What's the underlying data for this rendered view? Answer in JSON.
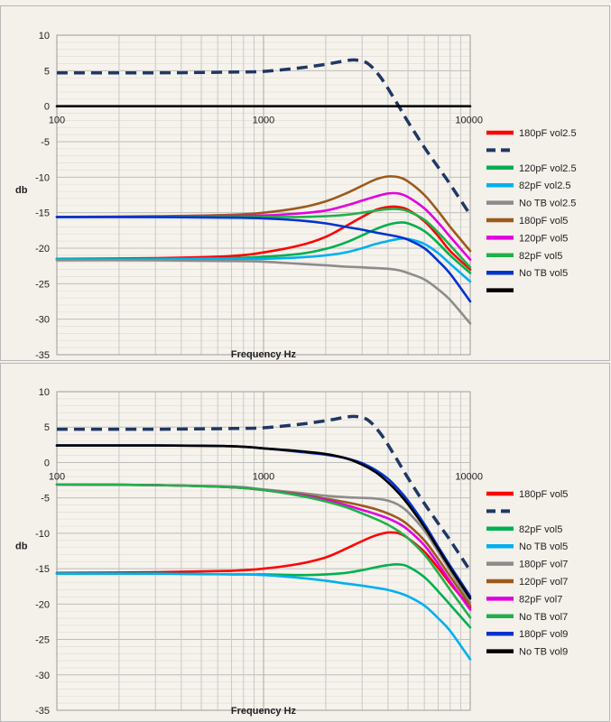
{
  "chart_data": [
    {
      "type": "line",
      "title": "",
      "xlabel": "Frequency Hz",
      "ylabel": "db",
      "xscale": "log",
      "xlim": [
        100,
        10000
      ],
      "ylim": [
        -35,
        10
      ],
      "x_tick_labels": [
        "100",
        "1000",
        "10000"
      ],
      "y_ticks": [
        10,
        5,
        0,
        -5,
        -10,
        -15,
        -20,
        -25,
        -30,
        -35
      ],
      "grid": true,
      "legend": "right",
      "series": [
        {
          "name": "180pF vol2.5",
          "color": "#ff0000",
          "dash": false,
          "x": [
            100,
            300,
            700,
            1000,
            1500,
            2000,
            2500,
            3000,
            3500,
            4000,
            4500,
            5000,
            6000,
            7000,
            8000,
            10000
          ],
          "y": [
            -21.5,
            -21.4,
            -21.1,
            -20.6,
            -19.6,
            -18.4,
            -16.9,
            -15.6,
            -14.6,
            -14.2,
            -14.2,
            -14.6,
            -16.2,
            -18.3,
            -20.4,
            -23.0
          ]
        },
        {
          "name": "",
          "color": "#1f3864",
          "dash": true,
          "x": [
            100,
            300,
            700,
            1000,
            1500,
            2000,
            2500,
            2800,
            3200,
            3700,
            4300,
            5000,
            6000,
            7000,
            8000,
            10000
          ],
          "y": [
            4.7,
            4.7,
            4.8,
            4.9,
            5.4,
            5.9,
            6.4,
            6.5,
            6.0,
            4.0,
            1.0,
            -2.2,
            -5.8,
            -8.6,
            -11.0,
            -15.3
          ]
        },
        {
          "name": "120pF vol2.5",
          "color": "#00b050",
          "dash": false,
          "x": [
            100,
            300,
            700,
            1000,
            1500,
            2000,
            2500,
            3000,
            3500,
            4000,
            4500,
            5000,
            6000,
            7000,
            8000,
            10000
          ],
          "y": [
            -21.5,
            -21.5,
            -21.4,
            -21.2,
            -20.8,
            -20.1,
            -19.2,
            -18.2,
            -17.3,
            -16.7,
            -16.4,
            -16.5,
            -17.6,
            -19.3,
            -21.0,
            -23.5
          ]
        },
        {
          "name": "82pF vol2.5",
          "color": "#00b0f0",
          "dash": false,
          "x": [
            100,
            300,
            700,
            1000,
            1500,
            2000,
            2500,
            3000,
            3500,
            4000,
            4500,
            5000,
            6000,
            7000,
            8000,
            10000
          ],
          "y": [
            -21.6,
            -21.6,
            -21.5,
            -21.5,
            -21.3,
            -21.0,
            -20.6,
            -20.0,
            -19.4,
            -19.0,
            -18.7,
            -18.7,
            -19.4,
            -20.7,
            -22.2,
            -24.7
          ]
        },
        {
          "name": "No TB vol2.5",
          "color": "#8c8c8c",
          "dash": false,
          "x": [
            100,
            300,
            700,
            1000,
            1500,
            2000,
            2500,
            3000,
            3500,
            4000,
            4500,
            5000,
            6000,
            7000,
            8000,
            10000
          ],
          "y": [
            -21.7,
            -21.7,
            -21.8,
            -21.9,
            -22.2,
            -22.4,
            -22.6,
            -22.7,
            -22.8,
            -22.9,
            -23.1,
            -23.5,
            -24.4,
            -25.8,
            -27.3,
            -30.6
          ]
        },
        {
          "name": "180pF vol5",
          "color": "#9c5a1c",
          "dash": false,
          "x": [
            100,
            300,
            700,
            1000,
            1500,
            2000,
            2500,
            3000,
            3500,
            4000,
            4500,
            5000,
            6000,
            7000,
            8000,
            10000
          ],
          "y": [
            -15.6,
            -15.5,
            -15.3,
            -15.0,
            -14.3,
            -13.4,
            -12.3,
            -11.2,
            -10.3,
            -9.9,
            -10.0,
            -10.6,
            -12.5,
            -14.8,
            -17.0,
            -20.4
          ]
        },
        {
          "name": "120pF vol5",
          "color": "#e000e0",
          "dash": false,
          "x": [
            100,
            300,
            700,
            1000,
            1500,
            2000,
            2500,
            3000,
            3500,
            4000,
            4500,
            5000,
            6000,
            7000,
            8000,
            10000
          ],
          "y": [
            -15.6,
            -15.6,
            -15.5,
            -15.4,
            -15.1,
            -14.7,
            -14.0,
            -13.3,
            -12.7,
            -12.3,
            -12.3,
            -12.8,
            -14.4,
            -16.4,
            -18.4,
            -21.6
          ]
        },
        {
          "name": "82pF vol5",
          "color": "#22b04a",
          "dash": false,
          "x": [
            100,
            300,
            700,
            1000,
            1500,
            2000,
            2500,
            3000,
            3500,
            4000,
            4500,
            5000,
            6000,
            7000,
            8000,
            10000
          ],
          "y": [
            -15.6,
            -15.6,
            -15.6,
            -15.6,
            -15.6,
            -15.5,
            -15.3,
            -15.0,
            -14.7,
            -14.5,
            -14.5,
            -14.8,
            -16.0,
            -17.8,
            -19.6,
            -22.7
          ]
        },
        {
          "name": "No TB vol5",
          "color": "#0033cc",
          "dash": false,
          "x": [
            100,
            300,
            700,
            1000,
            1500,
            2000,
            2500,
            3000,
            3500,
            4000,
            4500,
            5000,
            6000,
            7000,
            8000,
            10000
          ],
          "y": [
            -15.6,
            -15.6,
            -15.7,
            -15.8,
            -16.1,
            -16.5,
            -17.0,
            -17.4,
            -17.8,
            -18.1,
            -18.4,
            -18.8,
            -20.0,
            -21.8,
            -23.6,
            -27.5
          ]
        },
        {
          "name": "",
          "color": "#000000",
          "dash": false,
          "x": [
            100,
            10000
          ],
          "y": [
            0,
            0
          ]
        }
      ]
    },
    {
      "type": "line",
      "title": "",
      "xlabel": "Frequency Hz",
      "ylabel": "db",
      "xscale": "log",
      "xlim": [
        100,
        10000
      ],
      "ylim": [
        -35,
        10
      ],
      "x_tick_labels": [
        "100",
        "1000",
        "10000"
      ],
      "y_ticks": [
        10,
        5,
        0,
        -5,
        -10,
        -15,
        -20,
        -25,
        -30,
        -35
      ],
      "grid": true,
      "legend": "right",
      "series": [
        {
          "name": "180pF vol5",
          "color": "#ff0000",
          "dash": false,
          "x": [
            100,
            300,
            700,
            1000,
            1500,
            2000,
            2500,
            3000,
            3500,
            4000,
            4500,
            5000,
            6000,
            7000,
            8000,
            10000
          ],
          "y": [
            -15.6,
            -15.5,
            -15.3,
            -15.0,
            -14.3,
            -13.4,
            -12.2,
            -11.1,
            -10.3,
            -9.9,
            -10.0,
            -10.7,
            -12.6,
            -14.9,
            -17.1,
            -20.5
          ]
        },
        {
          "name": "",
          "color": "#1f3864",
          "dash": true,
          "x": [
            100,
            300,
            700,
            1000,
            1500,
            2000,
            2500,
            2800,
            3200,
            3700,
            4300,
            5000,
            6000,
            7000,
            8000,
            10000
          ],
          "y": [
            4.7,
            4.7,
            4.8,
            4.9,
            5.4,
            5.9,
            6.4,
            6.5,
            6.0,
            4.0,
            1.0,
            -2.2,
            -5.8,
            -8.6,
            -11.0,
            -15.3
          ]
        },
        {
          "name": "82pF vol5",
          "color": "#00b050",
          "dash": false,
          "x": [
            100,
            300,
            700,
            1000,
            1500,
            2000,
            2500,
            3000,
            3500,
            4000,
            4500,
            5000,
            6000,
            7000,
            8000,
            10000
          ],
          "y": [
            -15.7,
            -15.7,
            -15.8,
            -15.8,
            -15.9,
            -15.8,
            -15.6,
            -15.2,
            -14.8,
            -14.5,
            -14.4,
            -14.7,
            -16.2,
            -18.2,
            -20.1,
            -23.3
          ]
        },
        {
          "name": "No TB vol5",
          "color": "#00b0f0",
          "dash": false,
          "x": [
            100,
            300,
            700,
            1000,
            1500,
            2000,
            2500,
            3000,
            3500,
            4000,
            4500,
            5000,
            6000,
            7000,
            8000,
            10000
          ],
          "y": [
            -15.7,
            -15.7,
            -15.8,
            -15.9,
            -16.3,
            -16.7,
            -17.1,
            -17.4,
            -17.7,
            -18.0,
            -18.4,
            -18.9,
            -20.2,
            -22.0,
            -23.8,
            -27.8
          ]
        },
        {
          "name": "180pF vol7",
          "color": "#8c8c8c",
          "dash": false,
          "x": [
            100,
            300,
            700,
            1000,
            1500,
            2000,
            2500,
            3000,
            3500,
            4000,
            4500,
            5000,
            6000,
            7000,
            8000,
            10000
          ],
          "y": [
            -3.1,
            -3.2,
            -3.4,
            -3.8,
            -4.3,
            -4.7,
            -4.9,
            -5.0,
            -5.1,
            -5.4,
            -6.0,
            -7.0,
            -9.6,
            -12.6,
            -15.3,
            -19.8
          ]
        },
        {
          "name": "120pF vol7",
          "color": "#9c5a1c",
          "dash": false,
          "x": [
            100,
            300,
            700,
            1000,
            1500,
            2000,
            2500,
            3000,
            3500,
            4000,
            4500,
            5000,
            6000,
            7000,
            8000,
            10000
          ],
          "y": [
            -3.1,
            -3.2,
            -3.5,
            -3.9,
            -4.5,
            -5.1,
            -5.6,
            -6.1,
            -6.6,
            -7.2,
            -7.9,
            -8.8,
            -11.0,
            -13.6,
            -16.1,
            -20.2
          ]
        },
        {
          "name": "82pF vol7",
          "color": "#e000e0",
          "dash": false,
          "x": [
            100,
            300,
            700,
            1000,
            1500,
            2000,
            2500,
            3000,
            3500,
            4000,
            4500,
            5000,
            6000,
            7000,
            8000,
            10000
          ],
          "y": [
            -3.1,
            -3.2,
            -3.5,
            -3.9,
            -4.6,
            -5.3,
            -6.0,
            -6.7,
            -7.3,
            -7.9,
            -8.6,
            -9.5,
            -11.7,
            -14.3,
            -16.8,
            -20.8
          ]
        },
        {
          "name": "No TB vol7",
          "color": "#22b04a",
          "dash": false,
          "x": [
            100,
            300,
            700,
            1000,
            1500,
            2000,
            2500,
            3000,
            3500,
            4000,
            4500,
            5000,
            6000,
            7000,
            8000,
            10000
          ],
          "y": [
            -3.1,
            -3.2,
            -3.5,
            -3.9,
            -4.7,
            -5.5,
            -6.3,
            -7.2,
            -8.0,
            -8.8,
            -9.7,
            -10.7,
            -13.0,
            -15.6,
            -18.0,
            -21.9
          ]
        },
        {
          "name": "180pF vol9",
          "color": "#0033cc",
          "dash": false,
          "x": [
            100,
            300,
            700,
            1000,
            1500,
            2000,
            2500,
            3000,
            3500,
            4000,
            4500,
            5000,
            6000,
            7000,
            8000,
            10000
          ],
          "y": [
            2.4,
            2.4,
            2.3,
            2.0,
            1.5,
            1.1,
            0.6,
            -0.1,
            -1.1,
            -2.3,
            -3.8,
            -5.4,
            -8.7,
            -11.9,
            -14.6,
            -18.9
          ]
        },
        {
          "name": "No TB vol9",
          "color": "#000000",
          "dash": false,
          "x": [
            100,
            300,
            700,
            1000,
            1500,
            2000,
            2500,
            3000,
            3500,
            4000,
            4500,
            5000,
            6000,
            7000,
            8000,
            10000
          ],
          "y": [
            2.4,
            2.4,
            2.3,
            2.0,
            1.6,
            1.2,
            0.6,
            -0.3,
            -1.4,
            -2.8,
            -4.3,
            -5.9,
            -9.1,
            -12.2,
            -14.9,
            -19.2
          ]
        }
      ]
    }
  ]
}
